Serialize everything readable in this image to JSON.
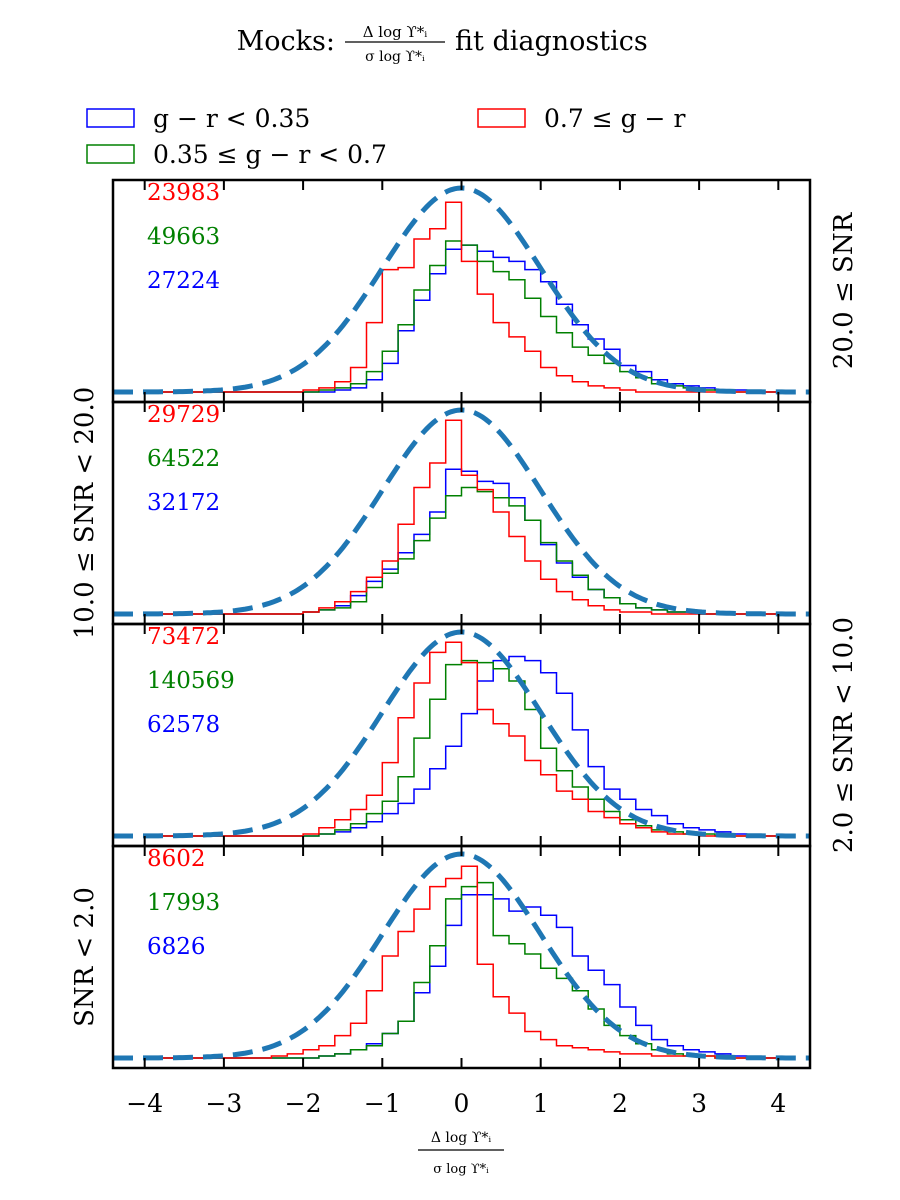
{
  "figure": {
    "title_prefix": "Mocks:",
    "title_frac_num": "Δ log ϒ*ᵢ",
    "title_frac_den": "σ log ϒ*ᵢ",
    "title_suffix": "fit diagnostics",
    "xlabel_num": "Δ log ϒ*ᵢ",
    "xlabel_den": "σ log ϒ*ᵢ"
  },
  "legend": [
    {
      "label": "g − r < 0.35",
      "color": "#0000ff"
    },
    {
      "label": "0.35 ≤ g − r < 0.7",
      "color": "#008000"
    },
    {
      "label": "0.7 ≤ g − r",
      "color": "#ff0000"
    }
  ],
  "colors": {
    "blue": "#0000ff",
    "green": "#008000",
    "red": "#ff0000",
    "gauss": "#1f77b4"
  },
  "chart_data": {
    "type": "histogram",
    "xlim": [
      -4.4,
      4.4
    ],
    "xticks": [
      -4,
      -3,
      -2,
      -1,
      0,
      1,
      2,
      3,
      4
    ],
    "bin_edges": [
      -4.0,
      -3.8,
      -3.6,
      -3.4,
      -3.2,
      -3.0,
      -2.8,
      -2.6,
      -2.4,
      -2.2,
      -2.0,
      -1.8,
      -1.6,
      -1.4,
      -1.2,
      -1.0,
      -0.8,
      -0.6,
      -0.4,
      -0.2,
      0.0,
      0.2,
      0.4,
      0.6,
      0.8,
      1.0,
      1.2,
      1.4,
      1.6,
      1.8,
      2.0,
      2.2,
      2.4,
      2.6,
      2.8,
      3.0,
      3.2,
      3.4,
      3.6,
      3.8,
      4.0
    ],
    "gaussian": {
      "mean": 0,
      "sigma": 1,
      "peak": 1.0,
      "style": "dashed"
    },
    "panels": [
      {
        "label": "20.0 ≤ SNR",
        "label_side": "right",
        "counts": [
          {
            "series": "0.7 ≤ g − r",
            "color": "red",
            "n": "23983"
          },
          {
            "series": "0.35 ≤ g − r < 0.7",
            "color": "green",
            "n": "49663"
          },
          {
            "series": "g − r < 0.35",
            "color": "blue",
            "n": "27224"
          }
        ],
        "series": [
          {
            "name": "g − r < 0.35",
            "color": "blue",
            "values": [
              0.0,
              0.0,
              0.0,
              0.0,
              0.0,
              0.0,
              0.0,
              0.0,
              0.0,
              0.0,
              0.0,
              0.0,
              0.01,
              0.02,
              0.06,
              0.14,
              0.3,
              0.45,
              0.58,
              0.7,
              0.72,
              0.69,
              0.66,
              0.64,
              0.6,
              0.54,
              0.43,
              0.33,
              0.26,
              0.21,
              0.13,
              0.1,
              0.06,
              0.04,
              0.03,
              0.02,
              0.01,
              0.01,
              0.0,
              0.0
            ]
          },
          {
            "name": "0.35 ≤ g − r < 0.7",
            "color": "green",
            "values": [
              0.0,
              0.0,
              0.0,
              0.0,
              0.0,
              0.0,
              0.0,
              0.0,
              0.0,
              0.0,
              0.0,
              0.01,
              0.02,
              0.04,
              0.1,
              0.2,
              0.33,
              0.5,
              0.62,
              0.74,
              0.72,
              0.64,
              0.59,
              0.55,
              0.46,
              0.37,
              0.29,
              0.22,
              0.18,
              0.14,
              0.1,
              0.07,
              0.04,
              0.03,
              0.02,
              0.01,
              0.01,
              0.0,
              0.0,
              0.0
            ]
          },
          {
            "name": "0.7 ≤ g − r",
            "color": "red",
            "values": [
              0.0,
              0.0,
              0.0,
              0.0,
              0.0,
              0.0,
              0.0,
              0.0,
              0.0,
              0.0,
              0.01,
              0.02,
              0.05,
              0.12,
              0.34,
              0.6,
              0.61,
              0.75,
              0.8,
              0.93,
              0.64,
              0.48,
              0.34,
              0.27,
              0.2,
              0.12,
              0.08,
              0.05,
              0.03,
              0.02,
              0.01,
              0.0,
              0.0,
              0.0,
              0.0,
              0.0,
              0.0,
              0.0,
              0.0,
              0.0
            ]
          }
        ]
      },
      {
        "label": "10.0 ≤ SNR < 20.0",
        "label_side": "left",
        "counts": [
          {
            "series": "0.7 ≤ g − r",
            "color": "red",
            "n": "29729"
          },
          {
            "series": "0.35 ≤ g − r < 0.7",
            "color": "green",
            "n": "64522"
          },
          {
            "series": "g − r < 0.35",
            "color": "blue",
            "n": "32172"
          }
        ],
        "series": [
          {
            "name": "g − r < 0.35",
            "color": "blue",
            "values": [
              0.0,
              0.0,
              0.0,
              0.0,
              0.0,
              0.0,
              0.0,
              0.0,
              0.0,
              0.0,
              0.01,
              0.02,
              0.04,
              0.09,
              0.16,
              0.22,
              0.3,
              0.39,
              0.5,
              0.71,
              0.7,
              0.65,
              0.64,
              0.57,
              0.46,
              0.34,
              0.25,
              0.18,
              0.12,
              0.08,
              0.05,
              0.03,
              0.02,
              0.01,
              0.01,
              0.0,
              0.0,
              0.0,
              0.0,
              0.0
            ]
          },
          {
            "name": "0.35 ≤ g − r < 0.7",
            "color": "green",
            "values": [
              0.0,
              0.0,
              0.0,
              0.0,
              0.0,
              0.0,
              0.0,
              0.0,
              0.0,
              0.0,
              0.01,
              0.02,
              0.03,
              0.06,
              0.13,
              0.2,
              0.27,
              0.36,
              0.47,
              0.58,
              0.62,
              0.6,
              0.57,
              0.53,
              0.46,
              0.35,
              0.26,
              0.19,
              0.12,
              0.08,
              0.05,
              0.03,
              0.02,
              0.01,
              0.01,
              0.0,
              0.0,
              0.0,
              0.0,
              0.0
            ]
          },
          {
            "name": "0.7 ≤ g − r",
            "color": "red",
            "values": [
              0.0,
              0.0,
              0.0,
              0.0,
              0.0,
              0.0,
              0.0,
              0.0,
              0.0,
              0.0,
              0.01,
              0.03,
              0.06,
              0.11,
              0.18,
              0.26,
              0.44,
              0.62,
              0.74,
              0.95,
              0.68,
              0.61,
              0.5,
              0.38,
              0.26,
              0.17,
              0.11,
              0.07,
              0.04,
              0.02,
              0.01,
              0.01,
              0.0,
              0.0,
              0.0,
              0.0,
              0.0,
              0.0,
              0.0,
              0.0
            ]
          }
        ]
      },
      {
        "label": "2.0 ≤ SNR < 10.0",
        "label_side": "right",
        "counts": [
          {
            "series": "0.7 ≤ g − r",
            "color": "red",
            "n": "73472"
          },
          {
            "series": "0.35 ≤ g − r < 0.7",
            "color": "green",
            "n": "140569"
          },
          {
            "series": "g − r < 0.35",
            "color": "blue",
            "n": "62578"
          }
        ],
        "series": [
          {
            "name": "g − r < 0.35",
            "color": "blue",
            "values": [
              0.0,
              0.0,
              0.0,
              0.0,
              0.0,
              0.0,
              0.0,
              0.0,
              0.0,
              0.0,
              0.0,
              0.01,
              0.02,
              0.04,
              0.07,
              0.11,
              0.16,
              0.23,
              0.33,
              0.44,
              0.6,
              0.76,
              0.86,
              0.88,
              0.86,
              0.8,
              0.7,
              0.52,
              0.34,
              0.23,
              0.18,
              0.13,
              0.1,
              0.06,
              0.04,
              0.03,
              0.02,
              0.01,
              0.0,
              0.0
            ]
          },
          {
            "name": "0.35 ≤ g − r < 0.7",
            "color": "green",
            "values": [
              0.0,
              0.0,
              0.0,
              0.0,
              0.0,
              0.0,
              0.0,
              0.0,
              0.0,
              0.0,
              0.0,
              0.01,
              0.03,
              0.06,
              0.11,
              0.17,
              0.29,
              0.48,
              0.67,
              0.84,
              0.86,
              0.85,
              0.82,
              0.76,
              0.62,
              0.43,
              0.32,
              0.24,
              0.18,
              0.12,
              0.08,
              0.05,
              0.03,
              0.02,
              0.01,
              0.01,
              0.0,
              0.0,
              0.0,
              0.0
            ]
          },
          {
            "name": "0.7 ≤ g − r",
            "color": "red",
            "values": [
              0.0,
              0.0,
              0.0,
              0.0,
              0.0,
              0.0,
              0.0,
              0.0,
              0.0,
              0.0,
              0.01,
              0.04,
              0.08,
              0.13,
              0.2,
              0.36,
              0.58,
              0.75,
              0.9,
              0.95,
              0.85,
              0.62,
              0.55,
              0.49,
              0.37,
              0.3,
              0.22,
              0.18,
              0.12,
              0.09,
              0.06,
              0.04,
              0.02,
              0.01,
              0.01,
              0.0,
              0.0,
              0.0,
              0.0,
              0.0
            ]
          }
        ]
      },
      {
        "label": "SNR < 2.0",
        "label_side": "left",
        "counts": [
          {
            "series": "0.7 ≤ g − r",
            "color": "red",
            "n": "8602"
          },
          {
            "series": "0.35 ≤ g − r < 0.7",
            "color": "green",
            "n": "17993"
          },
          {
            "series": "g − r < 0.35",
            "color": "blue",
            "n": "6826"
          }
        ],
        "series": [
          {
            "name": "g − r < 0.35",
            "color": "blue",
            "values": [
              0.0,
              0.0,
              0.0,
              0.0,
              0.0,
              0.0,
              0.0,
              0.0,
              0.0,
              0.0,
              0.0,
              0.01,
              0.02,
              0.04,
              0.07,
              0.12,
              0.18,
              0.32,
              0.45,
              0.65,
              0.8,
              0.8,
              0.78,
              0.72,
              0.74,
              0.7,
              0.64,
              0.5,
              0.43,
              0.36,
              0.25,
              0.16,
              0.09,
              0.06,
              0.04,
              0.03,
              0.02,
              0.01,
              0.0,
              0.0
            ]
          },
          {
            "name": "0.35 ≤ g − r < 0.7",
            "color": "green",
            "values": [
              0.0,
              0.0,
              0.0,
              0.0,
              0.0,
              0.0,
              0.0,
              0.0,
              0.0,
              0.0,
              0.0,
              0.01,
              0.02,
              0.04,
              0.06,
              0.12,
              0.18,
              0.37,
              0.55,
              0.78,
              0.84,
              0.86,
              0.6,
              0.56,
              0.51,
              0.44,
              0.39,
              0.33,
              0.24,
              0.16,
              0.11,
              0.07,
              0.04,
              0.02,
              0.01,
              0.01,
              0.0,
              0.0,
              0.0,
              0.0
            ]
          },
          {
            "name": "0.7 ≤ g − r",
            "color": "red",
            "values": [
              0.0,
              0.0,
              0.0,
              0.0,
              0.0,
              0.0,
              0.0,
              0.0,
              0.01,
              0.02,
              0.04,
              0.06,
              0.11,
              0.17,
              0.33,
              0.5,
              0.62,
              0.73,
              0.84,
              0.88,
              0.94,
              0.46,
              0.3,
              0.22,
              0.13,
              0.09,
              0.06,
              0.05,
              0.04,
              0.03,
              0.02,
              0.02,
              0.01,
              0.01,
              0.01,
              0.01,
              0.0,
              0.0,
              0.0,
              0.0
            ]
          }
        ]
      }
    ]
  }
}
